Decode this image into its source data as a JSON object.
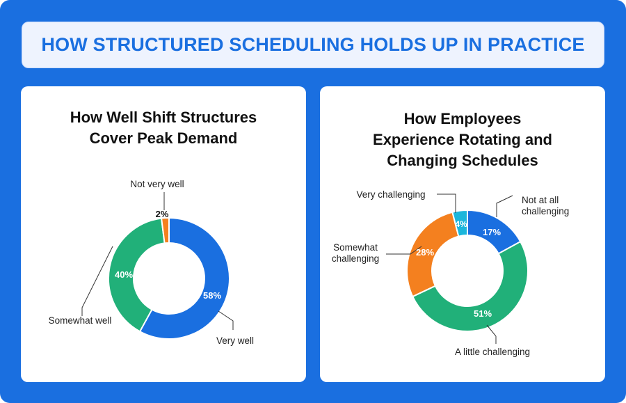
{
  "banner": {
    "title": "HOW STRUCTURED SCHEDULING HOLDS UP IN PRACTICE"
  },
  "colors": {
    "frame": "#1a6fe0",
    "banner_text": "#1a6fe0",
    "blue": "#1a6fe0",
    "green": "#21b079",
    "orange": "#f4801f",
    "cyan": "#1bb6db"
  },
  "chart_data": [
    {
      "type": "pie",
      "variant": "donut",
      "title_lines": [
        "How Well Shift Structures",
        "Cover Peak Demand"
      ],
      "categories": [
        "Very well",
        "Somewhat well",
        "Not very well"
      ],
      "values": [
        58,
        40,
        2
      ],
      "labels": [
        "58%",
        "40%",
        "2%"
      ],
      "colors": [
        "#1a6fe0",
        "#21b079",
        "#f4801f"
      ]
    },
    {
      "type": "pie",
      "variant": "donut",
      "title_lines": [
        "How Employees",
        "Experience Rotating and",
        "Changing Schedules"
      ],
      "categories": [
        "Not at all challenging",
        "A little challenging",
        "Somewhat challenging",
        "Very challenging"
      ],
      "values": [
        17,
        51,
        28,
        4
      ],
      "labels": [
        "17%",
        "51%",
        "28%",
        "4%"
      ],
      "colors": [
        "#1a6fe0",
        "#21b079",
        "#f4801f",
        "#1bb6db"
      ]
    }
  ]
}
